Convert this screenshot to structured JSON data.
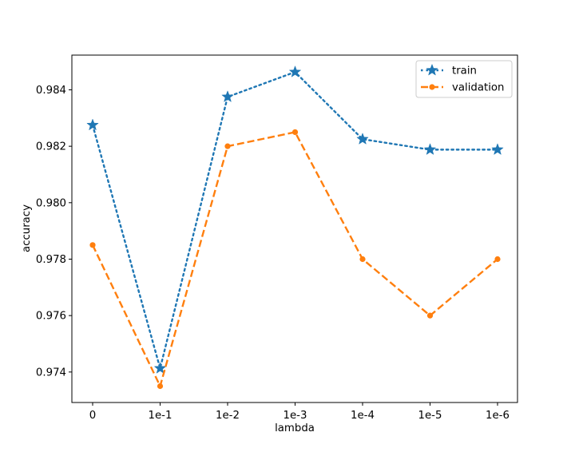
{
  "chart_data": {
    "type": "line",
    "title": "",
    "xlabel": "lambda",
    "ylabel": "accuracy",
    "categories": [
      "0",
      "1e-1",
      "1e-2",
      "1e-3",
      "1e-4",
      "1e-5",
      "1e-6"
    ],
    "ylim": [
      0.97292,
      0.98523
    ],
    "yticks": [
      "0.974",
      "0.976",
      "0.978",
      "0.980",
      "0.982",
      "0.984"
    ],
    "ytick_values": [
      0.974,
      0.976,
      0.978,
      0.98,
      0.982,
      0.984
    ],
    "grid": false,
    "legend_position": "top-right",
    "series": [
      {
        "name": "train",
        "values": [
          0.98275,
          0.97413,
          0.98375,
          0.98463,
          0.98225,
          0.98188,
          0.98188
        ],
        "color": "#1f77b4",
        "line_style": "dotted",
        "marker": "star"
      },
      {
        "name": "validation",
        "values": [
          0.9785,
          0.9735,
          0.982,
          0.9825,
          0.978,
          0.976,
          0.978
        ],
        "color": "#ff7f0e",
        "line_style": "dashed",
        "marker": "circle"
      }
    ]
  }
}
